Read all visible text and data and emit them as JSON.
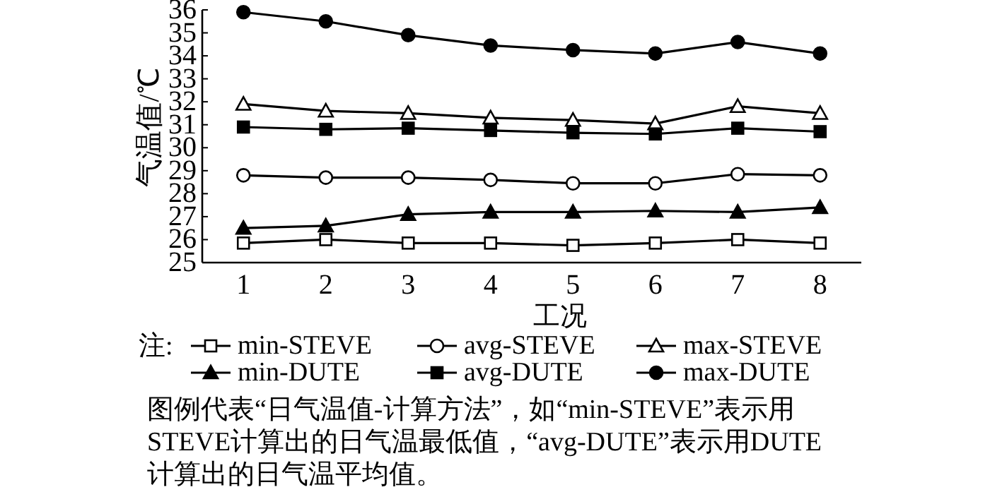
{
  "chart_data": {
    "type": "line",
    "xlabel": "工况",
    "ylabel": "气温值/℃",
    "legend_title": "注:",
    "x": [
      1,
      2,
      3,
      4,
      5,
      6,
      7,
      8
    ],
    "xlim": [
      0.5,
      8.5
    ],
    "xticks": [
      1,
      2,
      3,
      4,
      5,
      6,
      7,
      8
    ],
    "ylim": [
      25,
      36
    ],
    "yticks": [
      25,
      26,
      27,
      28,
      29,
      30,
      31,
      32,
      33,
      34,
      35,
      36
    ],
    "grid": false,
    "legend": "bottom",
    "line_style": "solid",
    "series": [
      {
        "name": "min-STEVE",
        "color": "#000000",
        "marker": "square-open",
        "values": [
          25.85,
          26.0,
          25.85,
          25.85,
          25.75,
          25.85,
          26.0,
          25.85
        ]
      },
      {
        "name": "avg-STEVE",
        "color": "#000000",
        "marker": "circle-open",
        "values": [
          28.8,
          28.7,
          28.7,
          28.6,
          28.45,
          28.45,
          28.85,
          28.8
        ]
      },
      {
        "name": "max-STEVE",
        "color": "#000000",
        "marker": "triangle-open",
        "values": [
          31.9,
          31.6,
          31.5,
          31.3,
          31.2,
          31.05,
          31.8,
          31.5
        ]
      },
      {
        "name": "min-DUTE",
        "color": "#000000",
        "marker": "triangle",
        "values": [
          26.5,
          26.6,
          27.1,
          27.2,
          27.2,
          27.25,
          27.2,
          27.4
        ]
      },
      {
        "name": "avg-DUTE",
        "color": "#000000",
        "marker": "square",
        "values": [
          30.9,
          30.8,
          30.85,
          30.75,
          30.65,
          30.6,
          30.85,
          30.7
        ]
      },
      {
        "name": "max-DUTE",
        "color": "#000000",
        "marker": "circle",
        "values": [
          35.9,
          35.5,
          34.9,
          34.45,
          34.25,
          34.1,
          34.6,
          34.1
        ]
      }
    ],
    "annotations": [
      "图例代表“日气温值-计算方法”，如“min-STEVE”表示用STEVE计算出的日气温最低值，“avg-DUTE”表示用DUTE计算出的日气温平均值。"
    ]
  }
}
